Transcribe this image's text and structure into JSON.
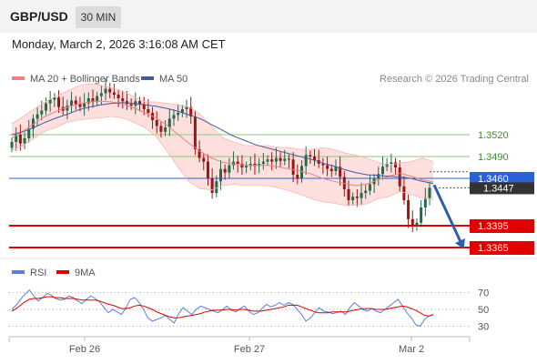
{
  "header": {
    "symbol": "GBP/USD",
    "timeframe": "30 MIN"
  },
  "datetime": "Monday, March 2, 2026 3:16:08 AM CET",
  "legend": {
    "bollinger": "MA 20 + Bollinger Bands",
    "ma50": "MA 50",
    "credit": "Research © 2026 Trading Central",
    "rsi": "RSI",
    "rsi_ma": "9MA"
  },
  "colors": {
    "bollinger": "#f08080",
    "band_fill": "#fde0de",
    "ma50": "#3f5d9e",
    "bull": "#1f6b4a",
    "bear": "#9c1414",
    "resistance": "#8cc97a",
    "support": "#e00000",
    "current": "#2a62d6",
    "pivot_label": "#333333",
    "rsi_line": "#5b7fe0",
    "rsi_ma_line": "#e00000",
    "arrow": "#2c5faa"
  },
  "chart_data": [
    {
      "type": "candlestick",
      "title": "",
      "x_ticks": [
        "Feb 26",
        "Feb 27",
        "Mar 2"
      ],
      "y_range": [
        1.3355,
        1.3595
      ],
      "levels": [
        {
          "value": 1.352,
          "label": "1.3520",
          "kind": "resistance"
        },
        {
          "value": 1.349,
          "label": "1.3490",
          "kind": "resistance"
        },
        {
          "value": 1.346,
          "label": "1.3460",
          "kind": "current"
        },
        {
          "value": 1.3447,
          "label": "1.3447",
          "kind": "pivot"
        },
        {
          "value": 1.3395,
          "label": "1.3395",
          "kind": "support"
        },
        {
          "value": 1.3365,
          "label": "1.3365",
          "kind": "support"
        }
      ],
      "forecast_arrow": {
        "from": 1.3451,
        "to": 1.3365
      },
      "series": {
        "ohlc_close": [
          1.351,
          1.352,
          1.3508,
          1.3515,
          1.3528,
          1.3542,
          1.3548,
          1.3553,
          1.3563,
          1.3568,
          1.3571,
          1.3558,
          1.3553,
          1.356,
          1.3567,
          1.3562,
          1.3558,
          1.3563,
          1.357,
          1.3565,
          1.3573,
          1.3577,
          1.3583,
          1.3578,
          1.3575,
          1.357,
          1.3566,
          1.3562,
          1.356,
          1.3566,
          1.3562,
          1.3555,
          1.355,
          1.354,
          1.3532,
          1.3524,
          1.353,
          1.3542,
          1.3547,
          1.355,
          1.3555,
          1.3558,
          1.3545,
          1.35,
          1.3488,
          1.3483,
          1.346,
          1.344,
          1.3456,
          1.3473,
          1.3468,
          1.3478,
          1.3483,
          1.348,
          1.3475,
          1.3477,
          1.348,
          1.3477,
          1.348,
          1.3483,
          1.3486,
          1.3483,
          1.3488,
          1.3484,
          1.3487,
          1.3486,
          1.3465,
          1.346,
          1.3477,
          1.3492,
          1.349,
          1.3485,
          1.348,
          1.3478,
          1.3473,
          1.347,
          1.3476,
          1.3462,
          1.3445,
          1.343,
          1.3435,
          1.3433,
          1.344,
          1.3443,
          1.3452,
          1.346,
          1.3466,
          1.3476,
          1.348,
          1.3482,
          1.3475,
          1.3449,
          1.343,
          1.3404,
          1.3396,
          1.3399,
          1.342,
          1.3433,
          1.3447
        ],
        "bollinger_upper": [
          1.3535,
          1.3545,
          1.3555,
          1.3565,
          1.3573,
          1.358,
          1.3587,
          1.359,
          1.3588,
          1.3585,
          1.358,
          1.3572,
          1.3565,
          1.3565,
          1.3563,
          1.3561,
          1.3558,
          1.3548,
          1.3532,
          1.3516,
          1.351,
          1.3505,
          1.3505,
          1.3505,
          1.3503,
          1.3502,
          1.35,
          1.35,
          1.3502,
          1.35,
          1.3495,
          1.3492,
          1.3488,
          1.3482,
          1.3478,
          1.3481,
          1.3483,
          1.3488,
          1.3483
        ],
        "bollinger_mid": [
          1.3515,
          1.3525,
          1.3535,
          1.3545,
          1.3552,
          1.3558,
          1.3562,
          1.3565,
          1.3566,
          1.3565,
          1.3562,
          1.3557,
          1.355,
          1.3543,
          1.3533,
          1.352,
          1.3508,
          1.3497,
          1.3488,
          1.3482,
          1.348,
          1.3478,
          1.3478,
          1.3478,
          1.3476,
          1.3473,
          1.347,
          1.3466,
          1.346,
          1.3456,
          1.3453,
          1.345,
          1.3452,
          1.3458,
          1.3463,
          1.3467,
          1.3463,
          1.3458,
          1.3455
        ],
        "bollinger_lower": [
          1.3498,
          1.3505,
          1.3515,
          1.3525,
          1.353,
          1.3537,
          1.354,
          1.3542,
          1.3543,
          1.3545,
          1.3543,
          1.3537,
          1.353,
          1.3518,
          1.3497,
          1.3475,
          1.3455,
          1.3446,
          1.3444,
          1.345,
          1.3452,
          1.345,
          1.345,
          1.345,
          1.3447,
          1.3443,
          1.3438,
          1.3432,
          1.3428,
          1.3426,
          1.3423,
          1.3423,
          1.3425,
          1.3432,
          1.3435,
          1.3442,
          1.3438,
          1.3433,
          1.343
        ],
        "ma50": [
          1.352,
          1.3524,
          1.353,
          1.3537,
          1.3543,
          1.3548,
          1.3554,
          1.3558,
          1.3561,
          1.3563,
          1.3564,
          1.3563,
          1.3561,
          1.3559,
          1.3556,
          1.3552,
          1.3547,
          1.3542,
          1.3534,
          1.3526,
          1.3518,
          1.3512,
          1.3506,
          1.3502,
          1.3498,
          1.3494,
          1.349,
          1.3486,
          1.3481,
          1.3477,
          1.3472,
          1.3468,
          1.3465,
          1.3464,
          1.3463,
          1.3462,
          1.346,
          1.3456,
          1.3453
        ]
      }
    },
    {
      "type": "line",
      "title": "RSI",
      "y_ticks": [
        70,
        50,
        30
      ],
      "y_range": [
        15,
        85
      ],
      "series": [
        {
          "name": "RSI",
          "values": [
            50,
            55,
            62,
            68,
            73,
            66,
            60,
            64,
            69,
            67,
            63,
            61,
            62,
            66,
            64,
            60,
            57,
            62,
            66,
            63,
            59,
            52,
            46,
            50,
            47,
            44,
            52,
            62,
            64,
            58,
            50,
            40,
            36,
            38,
            40,
            43,
            38,
            34,
            45,
            52,
            48,
            44,
            50,
            54,
            52,
            50,
            48,
            46,
            50,
            54,
            49,
            47,
            51,
            54,
            48,
            44,
            46,
            51,
            56,
            53,
            55,
            58,
            55,
            58,
            56,
            50,
            44,
            36,
            40,
            46,
            52,
            48,
            47,
            45,
            46,
            48,
            44,
            52,
            58,
            54,
            50,
            48,
            51,
            48,
            46,
            50,
            54,
            58,
            62,
            54,
            46,
            40,
            32,
            30,
            38,
            42,
            44
          ]
        },
        {
          "name": "9MA",
          "values": [
            48,
            51,
            55,
            59,
            62,
            63,
            63,
            64,
            65,
            65,
            64,
            64,
            63,
            63,
            63,
            62,
            61,
            61,
            61,
            61,
            60,
            58,
            56,
            55,
            53,
            51,
            51,
            52,
            54,
            55,
            54,
            52,
            50,
            47,
            45,
            43,
            41,
            40,
            40,
            41,
            42,
            43,
            44,
            45,
            47,
            48,
            49,
            49,
            49,
            50,
            50,
            49,
            50,
            50,
            49,
            48,
            48,
            48,
            49,
            50,
            51,
            52,
            53,
            55,
            55,
            55,
            53,
            51,
            49,
            47,
            46,
            46,
            46,
            47,
            47,
            47,
            47,
            48,
            49,
            50,
            51,
            51,
            51,
            50,
            50,
            50,
            51,
            52,
            53,
            54,
            53,
            51,
            49,
            46,
            43,
            42,
            44
          ]
        }
      ]
    }
  ]
}
